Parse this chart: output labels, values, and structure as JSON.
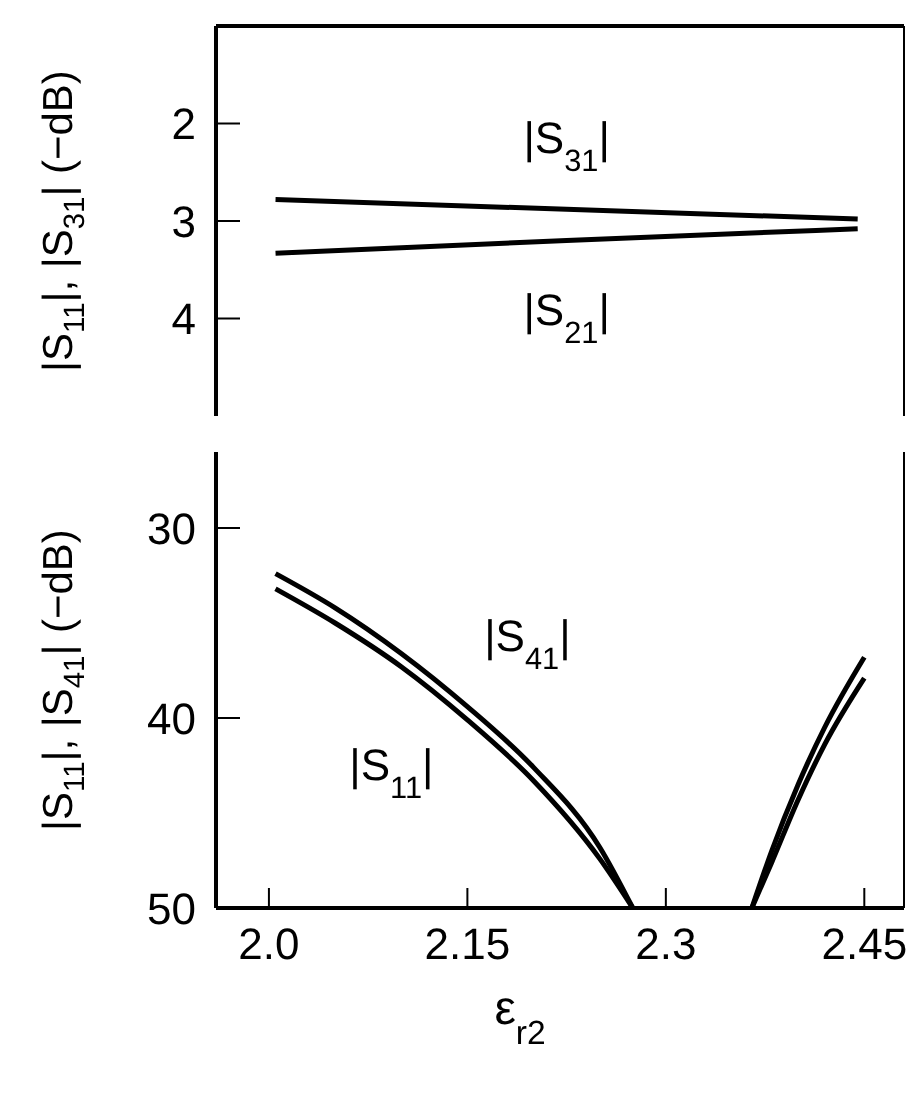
{
  "chart_data": [
    {
      "type": "line",
      "ylabel": "|S$_{11}$|, |S$_{31}$| (−dB)",
      "x": [
        2.005,
        2.225,
        2.445
      ],
      "xlim": [
        1.96,
        2.48
      ],
      "ylim": [
        5,
        1
      ],
      "yticks": [
        2,
        3,
        4
      ],
      "tick_labels": "y",
      "grid": false,
      "legend": false,
      "marker": "none",
      "line_style": "solid",
      "series": [
        {
          "name": "|S$_{31}$|",
          "color": "#000000",
          "values": [
            2.78,
            2.88,
            2.98
          ]
        },
        {
          "name": "|S$_{21}$|",
          "color": "#000000",
          "values": [
            3.33,
            3.2,
            3.08
          ]
        }
      ]
    },
    {
      "type": "line",
      "xlabel": "ε$_{r2}$",
      "ylabel": "|S$_{11}$|, |S$_{41}$| (−dB)",
      "x": [
        2.005,
        2.05,
        2.1,
        2.15,
        2.2,
        2.25,
        2.275,
        2.32,
        2.365,
        2.38,
        2.4,
        2.42,
        2.45
      ],
      "xlim": [
        1.96,
        2.48
      ],
      "xticks": [
        {
          "value": 2,
          "label": "2.0"
        },
        2.15,
        2.3,
        2.45
      ],
      "ylim": [
        50,
        26
      ],
      "yticks": [
        30,
        40,
        50
      ],
      "grid": false,
      "legend": false,
      "marker": "none",
      "line_style": "solid",
      "series": [
        {
          "name": "|S$_{41}$|",
          "color": "#000000",
          "values": [
            32.4,
            34.2,
            36.6,
            39.4,
            42.6,
            46.8,
            50,
            null,
            50,
            47,
            43.5,
            40.5,
            36.8
          ]
        },
        {
          "name": "|S$_{11}$|",
          "color": "#000000",
          "values": [
            33.2,
            35,
            37.3,
            40.1,
            43.3,
            47.4,
            50,
            null,
            50,
            47.6,
            44.3,
            41.4,
            37.9
          ]
        }
      ]
    }
  ]
}
